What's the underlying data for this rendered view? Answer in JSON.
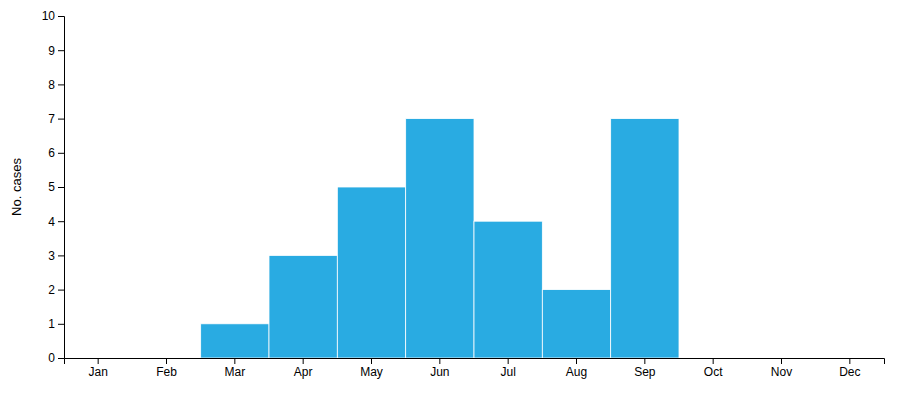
{
  "chart_data": {
    "type": "bar",
    "categories": [
      "Jan",
      "Feb",
      "Mar",
      "Apr",
      "May",
      "Jun",
      "Jul",
      "Aug",
      "Sep",
      "Oct",
      "Nov",
      "Dec"
    ],
    "values": [
      0,
      0,
      1,
      3,
      5,
      7,
      4,
      2,
      7,
      0,
      0,
      0
    ],
    "color": "#29ABE2",
    "y_label": "No. cases",
    "ylim": [
      0,
      10
    ],
    "yticks": [
      0,
      1,
      2,
      3,
      4,
      5,
      6,
      7,
      8,
      9,
      10
    ]
  }
}
